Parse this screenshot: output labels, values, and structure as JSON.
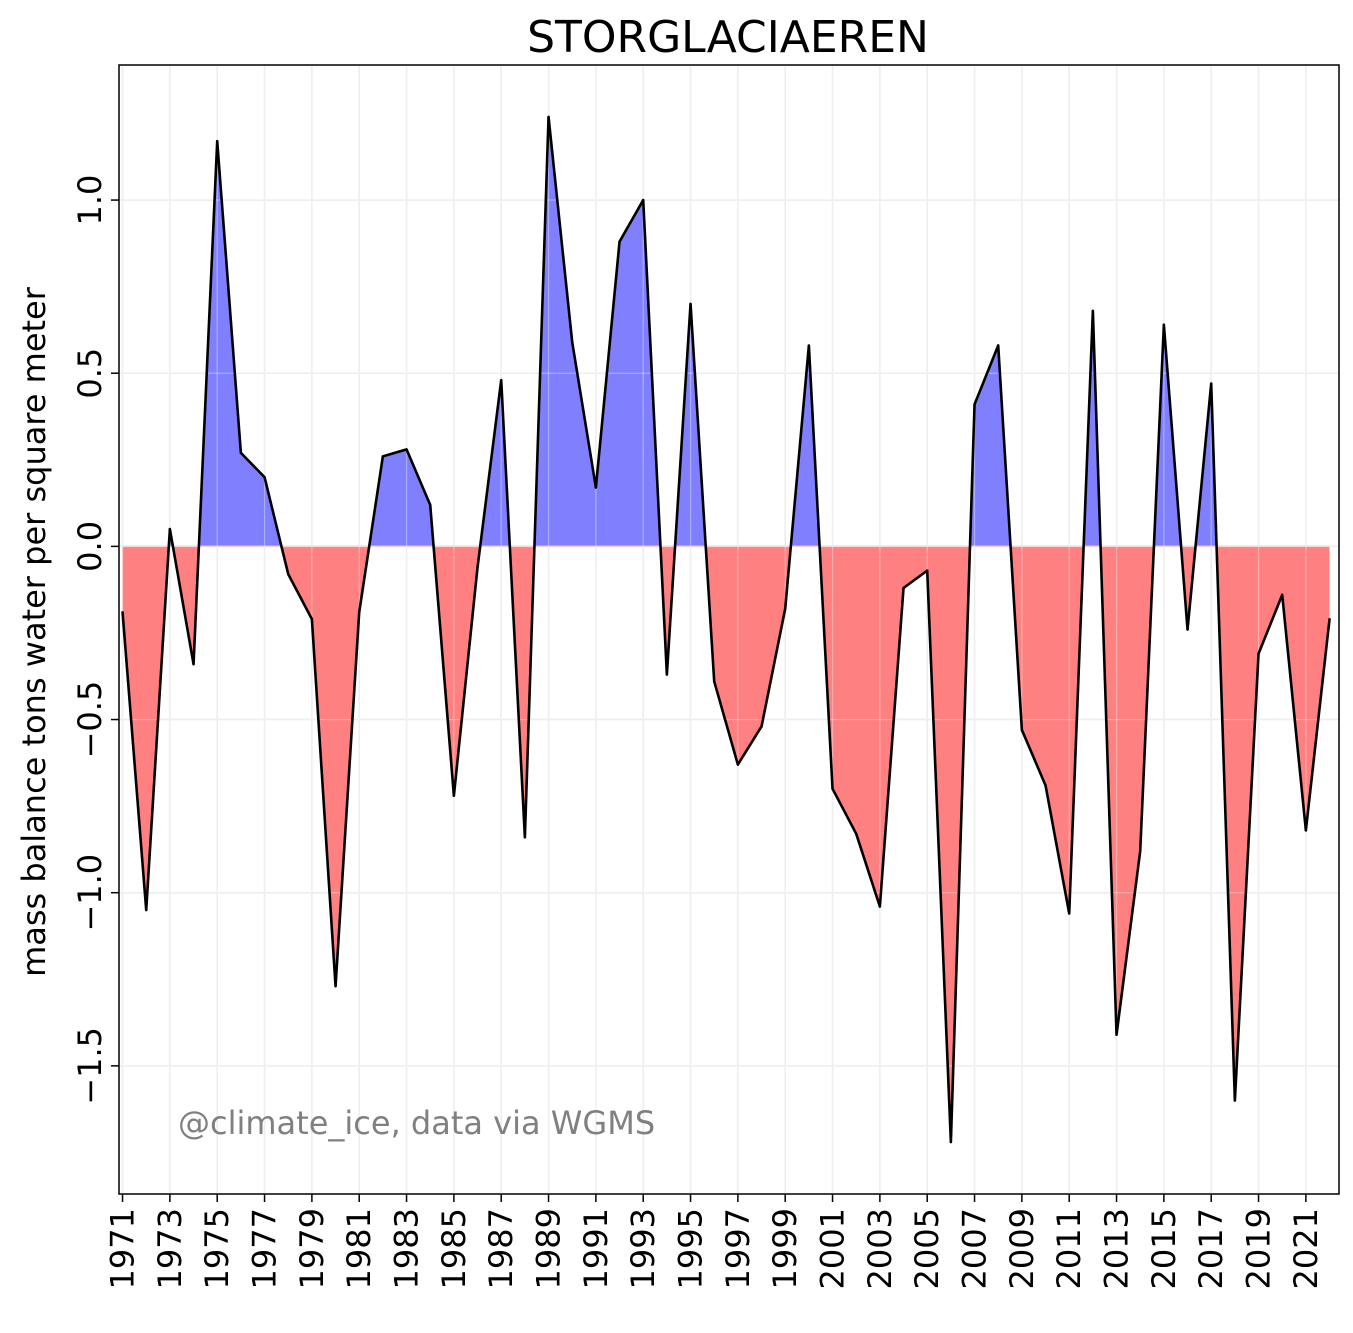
{
  "chart_data": {
    "type": "area",
    "title": "STORGLACIAEREN",
    "xlabel": "",
    "ylabel": "mass balance tons water per square meter",
    "watermark": "@climate_ice, data via WGMS",
    "x": [
      1971,
      1972,
      1973,
      1974,
      1975,
      1976,
      1977,
      1978,
      1979,
      1980,
      1981,
      1982,
      1983,
      1984,
      1985,
      1986,
      1987,
      1988,
      1989,
      1990,
      1991,
      1992,
      1993,
      1994,
      1995,
      1996,
      1997,
      1998,
      1999,
      2000,
      2001,
      2002,
      2003,
      2004,
      2005,
      2006,
      2007,
      2008,
      2009,
      2010,
      2011,
      2012,
      2013,
      2014,
      2015,
      2016,
      2017,
      2018,
      2019,
      2020,
      2021,
      2022
    ],
    "values": [
      -0.19,
      -1.05,
      0.05,
      -0.34,
      1.17,
      0.27,
      0.2,
      -0.08,
      -0.21,
      -1.27,
      -0.19,
      0.26,
      0.28,
      0.12,
      -0.72,
      -0.06,
      0.48,
      -0.84,
      1.24,
      0.59,
      0.17,
      0.88,
      1.0,
      -0.37,
      0.7,
      -0.39,
      -0.63,
      -0.52,
      -0.18,
      0.58,
      -0.7,
      -0.83,
      -1.04,
      -0.12,
      -0.07,
      -1.72,
      0.41,
      0.58,
      -0.53,
      -0.69,
      -1.06,
      0.68,
      -1.41,
      -0.88,
      0.64,
      -0.24,
      0.47,
      -1.6,
      -0.31,
      -0.14,
      -0.82,
      -0.21
    ],
    "xticks": [
      "1971",
      "1973",
      "1975",
      "1977",
      "1979",
      "1981",
      "1983",
      "1985",
      "1987",
      "1989",
      "1991",
      "1993",
      "1995",
      "1997",
      "1999",
      "2001",
      "2003",
      "2005",
      "2007",
      "2009",
      "2011",
      "2013",
      "2015",
      "2017",
      "2019",
      "2021"
    ],
    "yticks": [
      "−1.5",
      "−1.0",
      "−0.5",
      "0.0",
      "0.5",
      "1.0"
    ],
    "ytick_values": [
      -1.5,
      -1.0,
      -0.5,
      0.0,
      0.5,
      1.0
    ],
    "xlim": [
      1970.85,
      2022.4
    ],
    "ylim": [
      -1.87,
      1.39
    ],
    "grid": true,
    "colors": {
      "positive_fill": "#8080ff",
      "negative_fill": "#ff8080",
      "line": "#000000",
      "grid": "#e6e6e6",
      "watermark": "#808080"
    }
  }
}
